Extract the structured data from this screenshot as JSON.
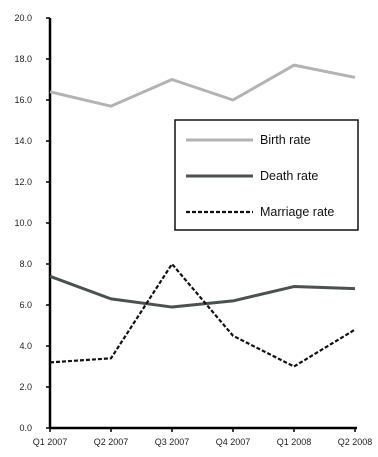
{
  "chart_data": {
    "type": "line",
    "title": "",
    "xlabel": "",
    "ylabel": "",
    "categories": [
      "Q1 2007",
      "Q2 2007",
      "Q3 2007",
      "Q4 2007",
      "Q1 2008",
      "Q2 2008"
    ],
    "ylim": [
      0,
      20
    ],
    "yticks": [
      "0.0",
      "2.0",
      "4.0",
      "6.0",
      "8.0",
      "10.0",
      "12.0",
      "14.0",
      "16.0",
      "18.0",
      "20.0"
    ],
    "grid": false,
    "legend_position": "right",
    "series": [
      {
        "name": "Birth rate",
        "values": [
          16.4,
          15.7,
          17.0,
          16.0,
          17.7,
          17.1
        ],
        "color": "#b3b3b3",
        "style": "solid"
      },
      {
        "name": "Death rate",
        "values": [
          7.4,
          6.3,
          5.9,
          6.2,
          6.9,
          6.8
        ],
        "color": "#4a524e",
        "style": "solid"
      },
      {
        "name": "Marriage rate",
        "values": [
          3.2,
          3.4,
          8.0,
          4.5,
          3.0,
          4.8
        ],
        "color": "#111111",
        "style": "dashed"
      }
    ]
  }
}
